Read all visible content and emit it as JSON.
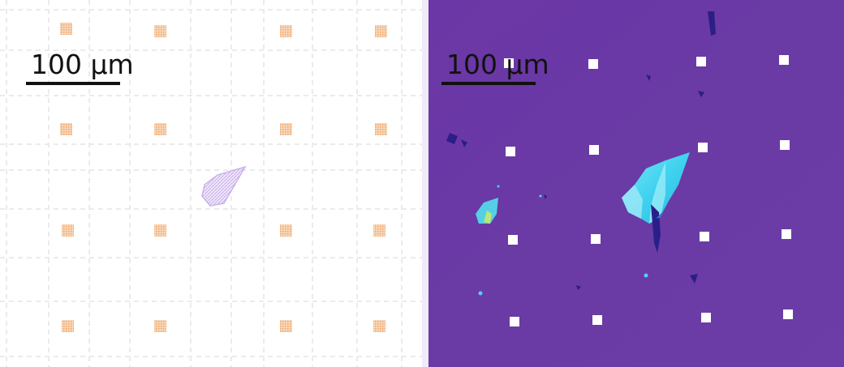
{
  "panels": {
    "left": {
      "scalebar_label": "100 µm",
      "colors": {
        "background": "#ffffff",
        "grid_lines": "#ebebeb",
        "markers": "#f2b17a",
        "flake_outline": "#c9b2ea"
      }
    },
    "right": {
      "scalebar_label": "100 µm",
      "colors": {
        "background": "#6a3aa3",
        "markers": "#ffffff",
        "flake_cyan": "#4ed8f2",
        "flake_dark": "#2a1f8a"
      }
    }
  }
}
